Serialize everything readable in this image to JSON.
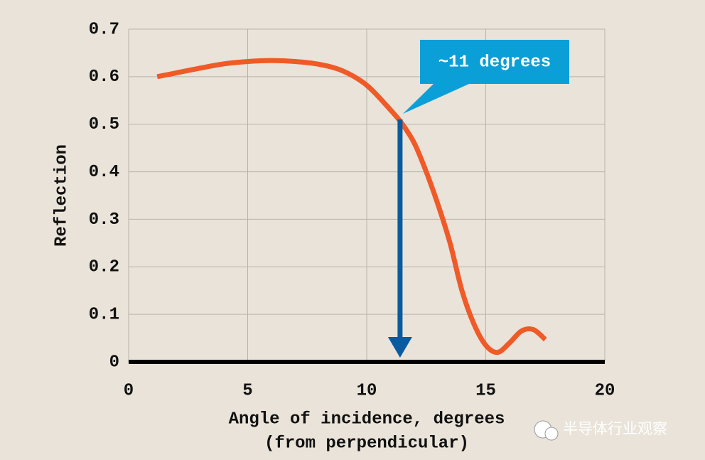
{
  "chart_data": {
    "type": "line",
    "ylabel": "Reflection",
    "xlabel": [
      "Angle of incidence, degrees",
      "(from perpendicular)"
    ],
    "x": [
      1.2,
      2,
      3,
      4,
      5,
      6,
      7,
      8,
      9,
      10,
      11,
      11.5,
      12,
      12.5,
      13,
      13.5,
      14,
      14.5,
      15,
      15.5,
      16,
      16.5,
      17,
      17.5
    ],
    "series": [
      {
        "name": "Reflection",
        "color": "#f05a28",
        "values": [
          0.6,
          0.608,
          0.618,
          0.627,
          0.632,
          0.634,
          0.632,
          0.626,
          0.612,
          0.582,
          0.53,
          0.5,
          0.46,
          0.4,
          0.33,
          0.25,
          0.15,
          0.08,
          0.035,
          0.02,
          0.04,
          0.065,
          0.068,
          0.047
        ]
      }
    ],
    "xlim": [
      0,
      20
    ],
    "xticks": [
      0,
      5,
      10,
      15,
      20
    ],
    "ylim": [
      0,
      0.7
    ],
    "yticks": [
      0,
      0.1,
      0.2,
      0.3,
      0.4,
      0.5,
      0.6,
      0.7
    ],
    "grid": true,
    "annotation": {
      "text": "~11 degrees",
      "x": 11.4,
      "y": 0.51,
      "color": "#0a5aa0",
      "box_color": "#0b9fd8"
    },
    "watermark": "半导体行业观察"
  }
}
